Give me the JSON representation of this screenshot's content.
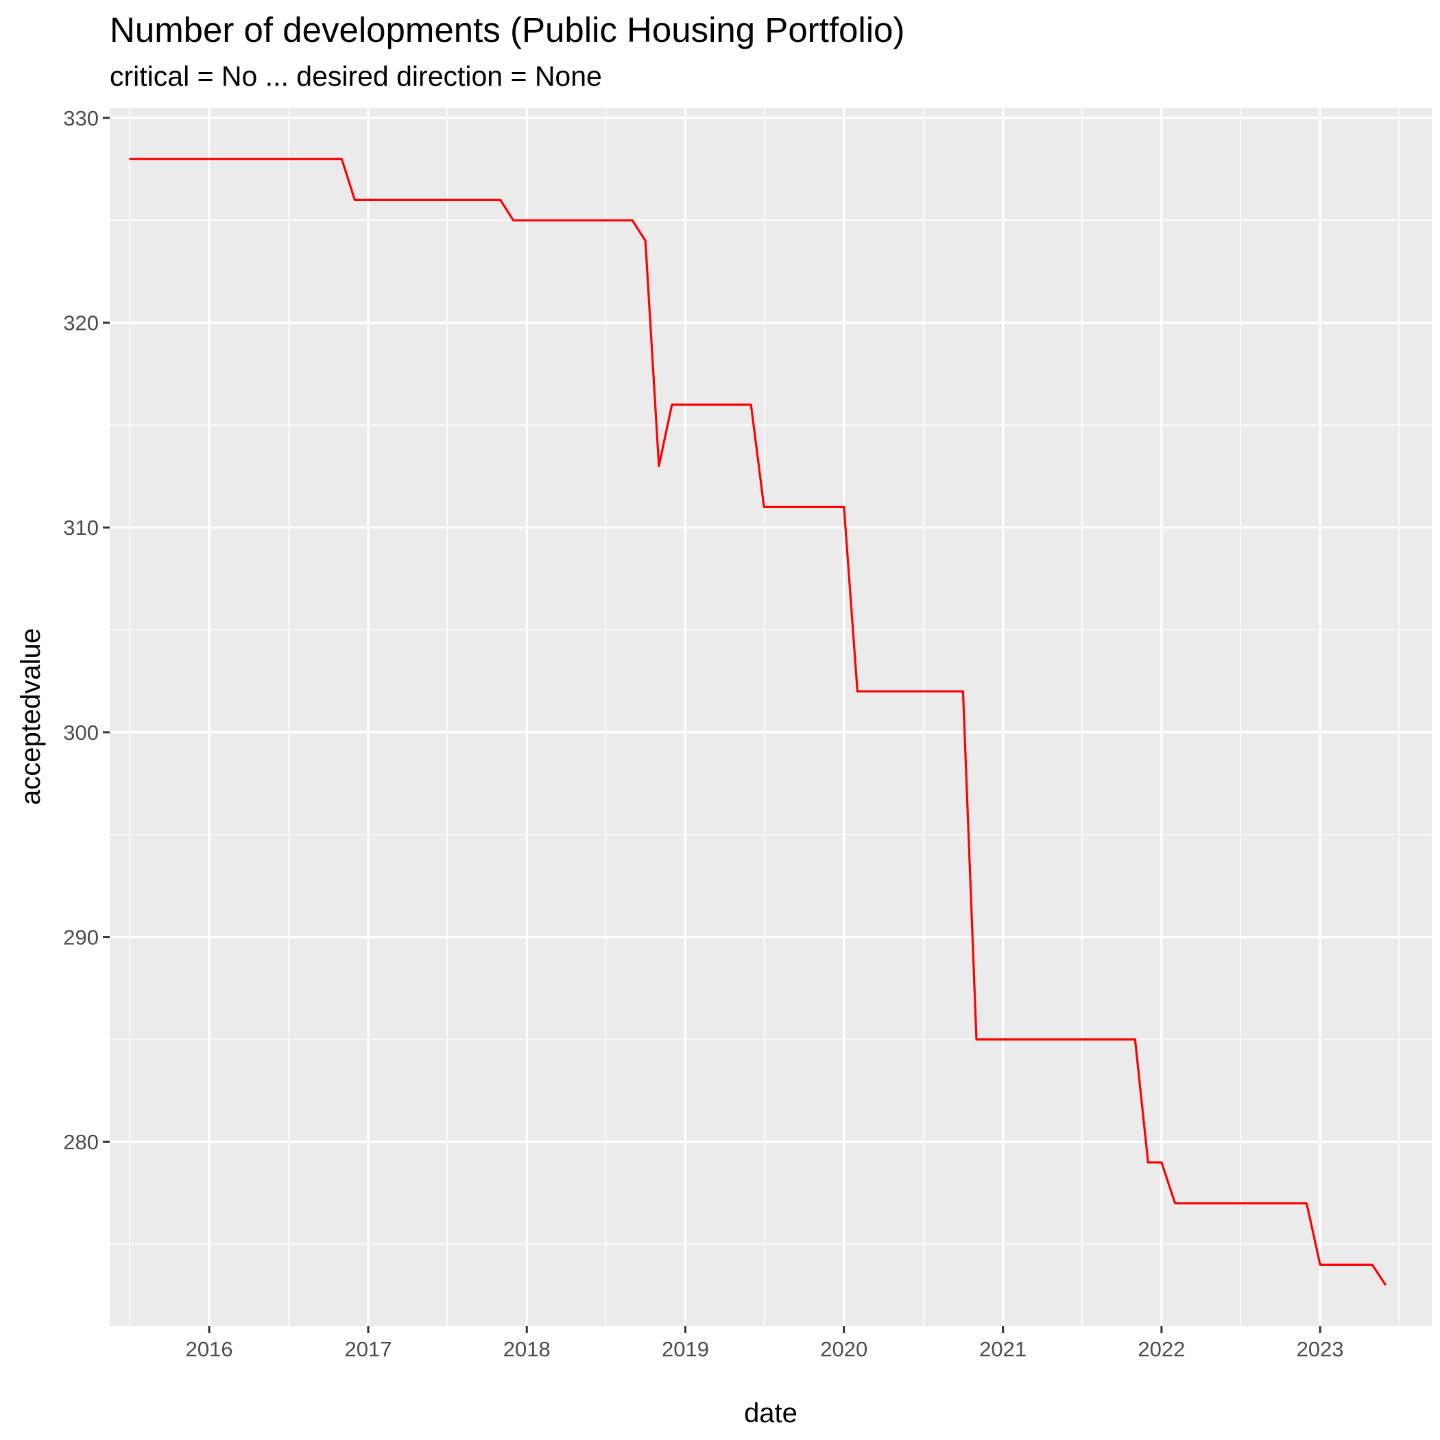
{
  "chart_data": {
    "type": "line",
    "title": "Number of developments (Public Housing Portfolio)",
    "subtitle": "critical = No ... desired direction = None",
    "xlabel": "date",
    "ylabel": "acceptedvalue",
    "x_ticks": [
      "2016",
      "2017",
      "2018",
      "2019",
      "2020",
      "2021",
      "2022",
      "2023"
    ],
    "y_ticks": [
      280,
      290,
      300,
      310,
      320,
      330
    ],
    "xlim": [
      "2015-05-17",
      "2023-09-15"
    ],
    "ylim": [
      271.0,
      330.5
    ],
    "grid": true,
    "line_color": "#ff0000",
    "panel_color": "#ebebeb",
    "grid_color": "#ffffff",
    "series": [
      {
        "x": [
          "2015-07-01",
          "2016-11-01",
          "2016-12-01",
          "2017-11-01",
          "2017-12-01",
          "2018-09-01",
          "2018-10-01",
          "2018-11-01",
          "2018-12-01",
          "2019-06-01",
          "2019-07-01",
          "2020-01-01",
          "2020-02-01",
          "2020-10-01",
          "2020-11-01",
          "2021-11-01",
          "2021-12-01",
          "2022-01-01",
          "2022-02-01",
          "2022-12-01",
          "2023-01-01",
          "2023-05-01",
          "2023-06-01"
        ],
        "values": [
          328,
          328,
          326,
          326,
          325,
          325,
          324,
          313,
          316,
          316,
          311,
          311,
          302,
          302,
          285,
          285,
          279,
          279,
          277,
          277,
          274,
          274,
          273
        ]
      }
    ]
  }
}
